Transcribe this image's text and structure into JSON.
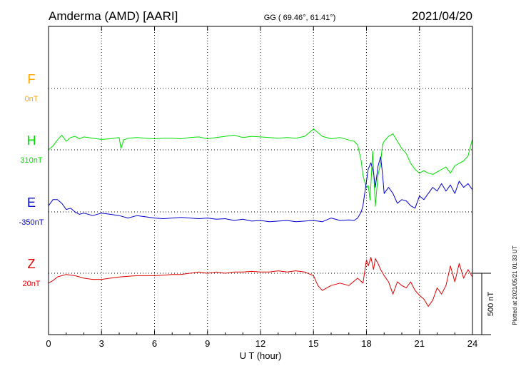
{
  "header": {
    "station": "Amderma (AMD)  [AARI]",
    "coords": "GG ( 69.46°,  61.41°)",
    "date": "2021/04/20"
  },
  "side_note": "Plotted at 2021/05/21 01:33 UT",
  "scale_label": "500 nT",
  "colors": {
    "F": "#ffa500",
    "H": "#00e000",
    "E": "#0000cc",
    "Z": "#dd0000"
  },
  "chart_data": {
    "type": "line",
    "xlabel": "U T (hour)",
    "xlim": [
      0,
      24
    ],
    "x_ticks": [
      0,
      3,
      6,
      9,
      12,
      15,
      18,
      21,
      24
    ],
    "grid": true,
    "series": [
      {
        "name": "F",
        "baseline_label": "0nT",
        "x": [],
        "y": []
      },
      {
        "name": "H",
        "baseline_label": "310nT",
        "x": [
          0,
          0.25,
          0.5,
          0.75,
          1,
          1.25,
          1.5,
          1.75,
          2,
          2.5,
          3,
          3.5,
          4,
          4.1,
          4.25,
          4.5,
          5,
          5.5,
          6,
          6.5,
          7,
          7.5,
          8,
          8.5,
          9,
          9.5,
          10,
          10.5,
          11,
          11.5,
          12,
          12.5,
          13,
          13.5,
          14,
          14.5,
          15,
          15.25,
          15.5,
          16,
          16.5,
          17,
          17.3,
          17.5,
          17.7,
          17.8,
          17.9,
          18,
          18.1,
          18.2,
          18.35,
          18.5,
          18.65,
          18.8,
          18.9,
          19,
          19.25,
          19.5,
          19.75,
          20,
          20.25,
          20.5,
          20.75,
          21,
          21.25,
          21.5,
          21.75,
          22,
          22.25,
          22.5,
          22.75,
          23,
          23.25,
          23.5,
          23.75,
          24
        ],
        "y": [
          310,
          340,
          390,
          430,
          380,
          410,
          420,
          400,
          415,
          405,
          395,
          400,
          410,
          320,
          390,
          405,
          410,
          405,
          400,
          405,
          405,
          400,
          410,
          415,
          400,
          410,
          420,
          430,
          410,
          420,
          415,
          410,
          405,
          410,
          405,
          420,
          480,
          450,
          420,
          400,
          410,
          390,
          380,
          350,
          220,
          100,
          50,
          0,
          20,
          -100,
          300,
          -150,
          100,
          200,
          350,
          380,
          420,
          440,
          380,
          320,
          280,
          200,
          150,
          120,
          140,
          120,
          110,
          130,
          150,
          170,
          120,
          180,
          200,
          220,
          260,
          400
        ]
      },
      {
        "name": "E",
        "baseline_label": "-350nT",
        "x": [
          0,
          0.25,
          0.5,
          0.75,
          1,
          1.25,
          1.5,
          1.75,
          2,
          2.5,
          3,
          3.5,
          4,
          4.5,
          5,
          5.5,
          6,
          6.5,
          7,
          7.5,
          8,
          8.5,
          9,
          9.5,
          10,
          10.5,
          11,
          11.5,
          12,
          12.5,
          13,
          13.5,
          14,
          14.5,
          15,
          15.25,
          15.5,
          16,
          16.5,
          17,
          17.3,
          17.5,
          17.7,
          17.8,
          17.9,
          18,
          18.1,
          18.25,
          18.4,
          18.5,
          18.65,
          18.8,
          18.9,
          19,
          19.25,
          19.5,
          19.75,
          20,
          20.25,
          20.5,
          20.75,
          21,
          21.25,
          21.5,
          21.75,
          22,
          22.25,
          22.5,
          22.75,
          23,
          23.25,
          23.5,
          23.75,
          24
        ],
        "y": [
          -300,
          -250,
          -250,
          -280,
          -330,
          -320,
          -350,
          -370,
          -360,
          -380,
          -360,
          -370,
          -380,
          -400,
          -380,
          -390,
          -400,
          -405,
          -400,
          -395,
          -400,
          -405,
          -400,
          -410,
          -405,
          -420,
          -410,
          -425,
          -420,
          -430,
          -425,
          -420,
          -430,
          -425,
          -420,
          -425,
          -430,
          -400,
          -420,
          -415,
          -420,
          -400,
          -350,
          -300,
          -200,
          -100,
          0,
          50,
          -30,
          -150,
          20,
          100,
          -30,
          -200,
          -150,
          -200,
          -280,
          -250,
          -260,
          -300,
          -320,
          -220,
          -250,
          -200,
          -150,
          -180,
          -120,
          -180,
          -130,
          -200,
          -100,
          -150,
          -120,
          -170
        ]
      },
      {
        "name": "Z",
        "baseline_label": "20nT",
        "x": [
          0,
          0.25,
          0.5,
          0.75,
          1,
          1.5,
          2,
          2.5,
          3,
          3.5,
          4,
          4.5,
          5,
          5.5,
          6,
          6.5,
          7,
          7.5,
          8,
          8.5,
          9,
          9.5,
          10,
          10.5,
          11,
          11.5,
          12,
          12.5,
          13,
          13.5,
          14,
          14.5,
          15,
          15.25,
          15.5,
          15.75,
          16,
          16.5,
          17,
          17.5,
          17.8,
          18,
          18.1,
          18.25,
          18.4,
          18.5,
          18.65,
          18.8,
          19,
          19.25,
          19.5,
          19.75,
          20,
          20.25,
          20.5,
          20.75,
          21,
          21.25,
          21.5,
          21.75,
          22,
          22.25,
          22.5,
          22.75,
          23,
          23.25,
          23.5,
          23.75,
          24
        ],
        "y": [
          -60,
          -40,
          -10,
          0,
          10,
          0,
          -20,
          -30,
          -30,
          -20,
          -10,
          -5,
          0,
          0,
          0,
          5,
          10,
          10,
          20,
          30,
          20,
          30,
          20,
          30,
          30,
          35,
          30,
          30,
          40,
          30,
          40,
          30,
          0,
          -80,
          -120,
          -100,
          -80,
          -60,
          -80,
          -20,
          -60,
          130,
          80,
          150,
          50,
          140,
          100,
          50,
          0,
          -50,
          -150,
          -50,
          -80,
          -100,
          -50,
          -120,
          -160,
          -190,
          -250,
          -200,
          -100,
          -150,
          -80,
          80,
          -50,
          100,
          -20,
          50,
          -10
        ]
      }
    ]
  }
}
